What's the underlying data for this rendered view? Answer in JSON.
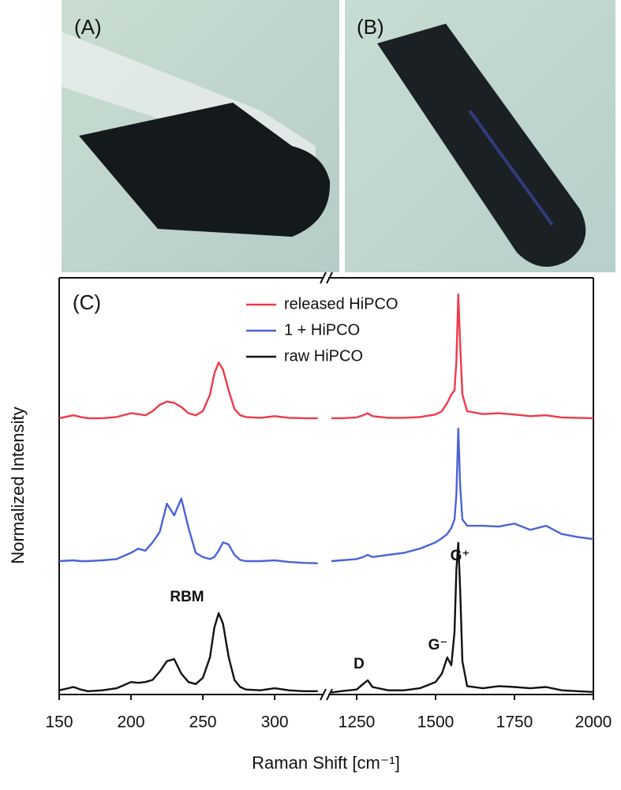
{
  "panels": {
    "a": "(A)",
    "b": "(B)",
    "c": "(C)"
  },
  "chart_data": {
    "type": "line",
    "xlabel": "Raman Shift [cm⁻¹]",
    "ylabel": "Normalized Intensity",
    "x_segments": [
      {
        "xlim": [
          150,
          334
        ],
        "xticks": [
          150,
          200,
          250,
          300
        ]
      },
      {
        "xlim": [
          1160,
          2000
        ],
        "xticks": [
          1250,
          1500,
          1750,
          2000
        ]
      }
    ],
    "ylim": [
      0,
      100
    ],
    "legend": "top-center",
    "annotations": [
      "RBM",
      "D",
      "G⁻",
      "G⁺"
    ],
    "x": [
      150,
      160,
      165,
      170,
      180,
      190,
      200,
      205,
      210,
      215,
      220,
      225,
      230,
      235,
      240,
      245,
      250,
      255,
      258,
      261,
      264,
      268,
      272,
      276,
      280,
      290,
      300,
      310,
      320,
      330,
      1170,
      1200,
      1250,
      1270,
      1285,
      1300,
      1350,
      1400,
      1450,
      1500,
      1520,
      1537,
      1550,
      1560,
      1566,
      1572,
      1578,
      1585,
      1600,
      1650,
      1700,
      1750,
      1800,
      1850,
      1900,
      1950,
      2000
    ],
    "series": [
      {
        "name": "released HiPCO",
        "color": "#f0394a",
        "values": [
          66.3,
          67,
          66.6,
          66.3,
          66.3,
          66.6,
          67.5,
          67.3,
          67,
          68,
          69.5,
          70.3,
          70,
          69,
          67.5,
          67,
          68,
          72,
          77,
          79.7,
          78,
          73,
          68.5,
          67,
          66.6,
          66.4,
          66.8,
          66.4,
          66.3,
          66.3,
          66.3,
          66.3,
          66.5,
          67,
          67.5,
          66.8,
          66.4,
          66.4,
          66.6,
          67.2,
          68,
          70,
          72,
          73,
          80,
          96,
          84,
          72,
          68,
          67.3,
          67.5,
          67.2,
          66.8,
          67,
          66.5,
          66.4,
          66.3
        ]
      },
      {
        "name": "1 + HiPCO",
        "color": "#4a63d8",
        "values": [
          32,
          32.2,
          32,
          32,
          32.2,
          32.5,
          34,
          35,
          34.5,
          36.5,
          39,
          45.8,
          43,
          47,
          40,
          34,
          33,
          32.5,
          33,
          34.5,
          36.5,
          36,
          33.5,
          32.3,
          32,
          32,
          32.2,
          31.8,
          31.6,
          31.5,
          32,
          32.2,
          32.5,
          33,
          33.5,
          33,
          33.5,
          34,
          35,
          36.5,
          37.5,
          38.5,
          40,
          42,
          48,
          63.8,
          50,
          42,
          40.5,
          40.5,
          40.3,
          41,
          39.5,
          40.5,
          38.5,
          37.8,
          37.3
        ]
      },
      {
        "name": "raw HiPCO",
        "color": "#111111",
        "values": [
          1,
          1.8,
          1.2,
          0.8,
          1,
          1.5,
          3,
          2.8,
          3,
          3.5,
          5.5,
          8,
          8.5,
          5,
          3,
          2.5,
          4,
          9,
          16,
          19.5,
          17,
          9,
          3.5,
          1.8,
          1.2,
          1,
          1.5,
          1,
          0.8,
          0.8,
          0.5,
          0.8,
          1.2,
          2.5,
          3.4,
          1.8,
          1,
          1,
          1.5,
          3,
          5,
          8.9,
          7,
          15,
          30,
          36.4,
          25,
          8,
          2,
          1.5,
          2,
          1.8,
          1.5,
          1.8,
          1,
          0.8,
          0.6
        ]
      }
    ]
  }
}
